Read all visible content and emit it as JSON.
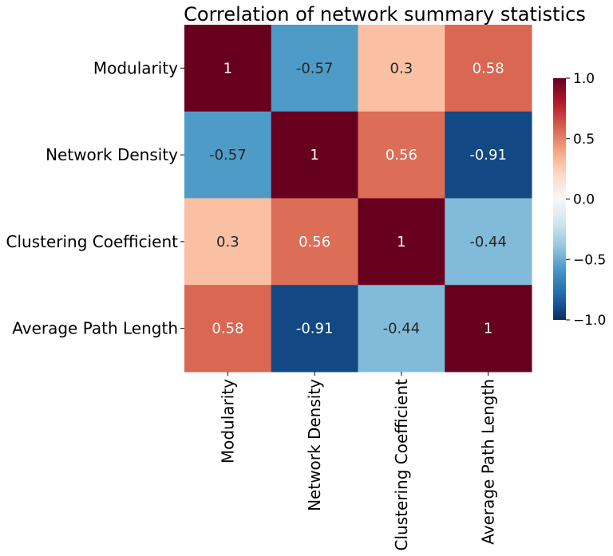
{
  "chart_data": {
    "type": "heatmap",
    "title": "Correlation of network summary statistics",
    "xlabel": "",
    "ylabel": "",
    "rows": [
      "Modularity",
      "Network Density",
      "Clustering Coefficient",
      "Average Path Length"
    ],
    "cols": [
      "Modularity",
      "Network Density",
      "Clustering Coefficient",
      "Average Path Length"
    ],
    "values": [
      [
        1,
        -0.57,
        0.3,
        0.58
      ],
      [
        -0.57,
        1,
        0.56,
        -0.91
      ],
      [
        0.3,
        0.56,
        1,
        -0.44
      ],
      [
        0.58,
        -0.91,
        -0.44,
        1
      ]
    ],
    "labels": [
      [
        "1",
        "-0.57",
        "0.3",
        "0.58"
      ],
      [
        "-0.57",
        "1",
        "0.56",
        "-0.91"
      ],
      [
        "0.3",
        "0.56",
        "1",
        "-0.44"
      ],
      [
        "0.58",
        "-0.91",
        "-0.44",
        "1"
      ]
    ],
    "colormap": "RdBu_r",
    "vmin": -1,
    "vmax": 1,
    "colorbar": {
      "ticks": [
        1.0,
        0.5,
        0.0,
        -0.5,
        -1.0
      ],
      "tick_labels": [
        "1.0",
        "0.5",
        "0.0",
        "−0.5",
        "−1.0"
      ]
    }
  }
}
